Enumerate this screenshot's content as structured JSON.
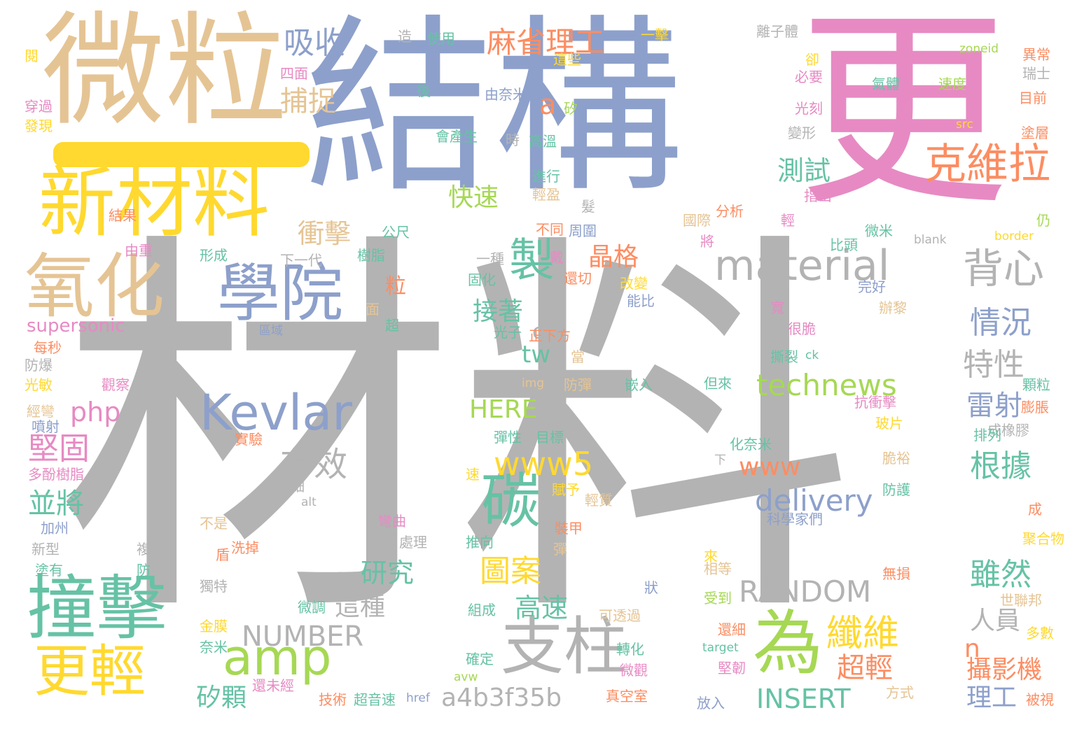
{
  "palette": {
    "grey": "#B3B3B3",
    "blue": "#8DA0CB",
    "pink": "#E78AC3",
    "tan": "#E5C494",
    "yellow": "#FFD92F",
    "green": "#A6D854",
    "teal": "#66C2A5",
    "orange": "#FC8D62"
  },
  "words": [
    {
      "text": "材料",
      "color": "grey"
    },
    {
      "text": "結構",
      "color": "blue"
    },
    {
      "text": "更",
      "color": "pink"
    },
    {
      "text": "微粒",
      "color": "tan"
    },
    {
      "text": "新材料",
      "color": "yellow"
    },
    {
      "text": "氧化",
      "color": "tan"
    },
    {
      "text": "學院",
      "color": "blue"
    },
    {
      "text": "撞擊",
      "color": "teal"
    },
    {
      "text": "更輕",
      "color": "yellow"
    },
    {
      "text": "Kevlar",
      "color": "blue"
    },
    {
      "text": "amp",
      "color": "green"
    },
    {
      "text": "支柱",
      "color": "grey"
    },
    {
      "text": "為",
      "color": "green"
    },
    {
      "text": "material",
      "color": "grey"
    },
    {
      "text": "克維拉",
      "color": "orange"
    },
    {
      "text": "背心",
      "color": "grey"
    },
    {
      "text": "碳",
      "color": "teal"
    },
    {
      "text": "製",
      "color": "teal"
    },
    {
      "text": "technews",
      "color": "green"
    },
    {
      "text": "www5",
      "color": "yellow"
    },
    {
      "text": "RANDOM",
      "color": "grey"
    },
    {
      "text": "NUMBER",
      "color": "grey"
    },
    {
      "text": "a4b3f35b",
      "color": "grey"
    },
    {
      "text": "INSERT",
      "color": "teal"
    },
    {
      "text": "delivery",
      "color": "blue"
    },
    {
      "text": "www",
      "color": "orange"
    },
    {
      "text": "HERE",
      "color": "green"
    },
    {
      "text": "php",
      "color": "pink"
    },
    {
      "text": "tw",
      "color": "teal"
    },
    {
      "text": "cb",
      "color": "grey"
    },
    {
      "text": "a",
      "color": "orange"
    },
    {
      "text": "n",
      "color": "orange"
    },
    {
      "text": "有效",
      "color": "grey"
    },
    {
      "text": "纖維",
      "color": "yellow"
    },
    {
      "text": "測試",
      "color": "teal"
    },
    {
      "text": "麻省理工",
      "color": "orange"
    },
    {
      "text": "吸收",
      "color": "blue"
    },
    {
      "text": "捕捉",
      "color": "tan"
    },
    {
      "text": "快速",
      "color": "green"
    },
    {
      "text": "衝擊",
      "color": "tan"
    },
    {
      "text": "晶格",
      "color": "orange"
    },
    {
      "text": "情況",
      "color": "blue"
    },
    {
      "text": "特性",
      "color": "grey"
    },
    {
      "text": "接著",
      "color": "teal"
    },
    {
      "text": "雷射",
      "color": "blue"
    },
    {
      "text": "堅固",
      "color": "pink"
    },
    {
      "text": "根據",
      "color": "teal"
    },
    {
      "text": "並將",
      "color": "teal"
    },
    {
      "text": "雖然",
      "color": "teal"
    },
    {
      "text": "圖案",
      "color": "yellow"
    },
    {
      "text": "研究",
      "color": "teal"
    },
    {
      "text": "這種",
      "color": "grey"
    },
    {
      "text": "高速",
      "color": "teal"
    },
    {
      "text": "超輕",
      "color": "orange"
    },
    {
      "text": "人員",
      "color": "grey"
    },
    {
      "text": "攝影機",
      "color": "orange"
    },
    {
      "text": "矽顆",
      "color": "teal"
    },
    {
      "text": "理工",
      "color": "blue"
    },
    {
      "text": "粒",
      "color": "orange"
    },
    {
      "text": "supersonic",
      "color": "pink"
    },
    {
      "text": "造",
      "color": "grey"
    },
    {
      "text": "使用",
      "color": "teal"
    },
    {
      "text": "一擊",
      "color": "yellow"
    },
    {
      "text": "離子體",
      "color": "grey"
    },
    {
      "text": "異常",
      "color": "orange"
    },
    {
      "text": "瑞士",
      "color": "grey"
    },
    {
      "text": "目前",
      "color": "orange"
    },
    {
      "text": "塗層",
      "color": "orange"
    },
    {
      "text": "zoneid",
      "color": "green"
    },
    {
      "text": "卻",
      "color": "yellow"
    },
    {
      "text": "這些",
      "color": "yellow"
    },
    {
      "text": "必要",
      "color": "pink"
    },
    {
      "text": "四面",
      "color": "pink"
    },
    {
      "text": "後",
      "color": "teal"
    },
    {
      "text": "由奈米",
      "color": "blue"
    },
    {
      "text": "矽",
      "color": "green"
    },
    {
      "text": "氣體",
      "color": "teal"
    },
    {
      "text": "速度",
      "color": "green"
    },
    {
      "text": "光刻",
      "color": "pink"
    },
    {
      "text": "src",
      "color": "yellow"
    },
    {
      "text": "變形",
      "color": "grey"
    },
    {
      "text": "會產生",
      "color": "teal"
    },
    {
      "text": "時",
      "color": "grey"
    },
    {
      "text": "高溫",
      "color": "teal"
    },
    {
      "text": "進行",
      "color": "teal"
    },
    {
      "text": "輕盈",
      "color": "tan"
    },
    {
      "text": "指出",
      "color": "pink"
    },
    {
      "text": "分析",
      "color": "orange"
    },
    {
      "text": "國際",
      "color": "tan"
    },
    {
      "text": "輕",
      "color": "pink"
    },
    {
      "text": "髮",
      "color": "grey"
    },
    {
      "text": "不同",
      "color": "orange"
    },
    {
      "text": "周圍",
      "color": "blue"
    },
    {
      "text": "公尺",
      "color": "teal"
    },
    {
      "text": "微米",
      "color": "teal"
    },
    {
      "text": "仍",
      "color": "green"
    },
    {
      "text": "blank",
      "color": "grey"
    },
    {
      "text": "border",
      "color": "yellow"
    },
    {
      "text": "比頭",
      "color": "teal"
    },
    {
      "text": "將",
      "color": "pink"
    },
    {
      "text": "一種",
      "color": "grey"
    },
    {
      "text": "固化",
      "color": "teal"
    },
    {
      "text": "樹脂",
      "color": "teal"
    },
    {
      "text": "下一代",
      "color": "grey"
    },
    {
      "text": "形成",
      "color": "teal"
    },
    {
      "text": "戴",
      "color": "pink"
    },
    {
      "text": "還切",
      "color": "orange"
    },
    {
      "text": "改變",
      "color": "yellow"
    },
    {
      "text": "能比",
      "color": "blue"
    },
    {
      "text": "完好",
      "color": "blue"
    },
    {
      "text": "寬",
      "color": "pink"
    },
    {
      "text": "很脆",
      "color": "pink"
    },
    {
      "text": "撕裂",
      "color": "teal"
    },
    {
      "text": "ck",
      "color": "teal"
    },
    {
      "text": "辦黎",
      "color": "tan"
    },
    {
      "text": "顆粒",
      "color": "teal"
    },
    {
      "text": "膨脹",
      "color": "orange"
    },
    {
      "text": "成橡膠",
      "color": "grey"
    },
    {
      "text": "排列",
      "color": "teal"
    },
    {
      "text": "玻片",
      "color": "yellow"
    },
    {
      "text": "抗衝擊",
      "color": "pink"
    },
    {
      "text": "但來",
      "color": "teal"
    },
    {
      "text": "嵌入",
      "color": "teal"
    },
    {
      "text": "防彈",
      "color": "tan"
    },
    {
      "text": "當",
      "color": "tan"
    },
    {
      "text": "img",
      "color": "tan"
    },
    {
      "text": "正下方",
      "color": "orange"
    },
    {
      "text": "光子",
      "color": "teal"
    },
    {
      "text": "超",
      "color": "teal"
    },
    {
      "text": "面",
      "color": "tan"
    },
    {
      "text": "區域",
      "color": "blue"
    },
    {
      "text": "觀察",
      "color": "pink"
    },
    {
      "text": "彈性",
      "color": "teal"
    },
    {
      "text": "目標",
      "color": "teal"
    },
    {
      "text": "化奈米",
      "color": "teal"
    },
    {
      "text": "下",
      "color": "grey"
    },
    {
      "text": "脆裕",
      "color": "tan"
    },
    {
      "text": "防護",
      "color": "teal"
    },
    {
      "text": "成",
      "color": "orange"
    },
    {
      "text": "聚合物",
      "color": "yellow"
    },
    {
      "text": "科學家們",
      "color": "blue"
    },
    {
      "text": "速",
      "color": "yellow"
    },
    {
      "text": "賦予",
      "color": "yellow"
    },
    {
      "text": "輕質",
      "color": "tan"
    },
    {
      "text": "裝甲",
      "color": "orange"
    },
    {
      "text": "彈",
      "color": "tan"
    },
    {
      "text": "推向",
      "color": "teal"
    },
    {
      "text": "彎曲",
      "color": "pink"
    },
    {
      "text": "處理",
      "color": "grey"
    },
    {
      "text": "洗掉",
      "color": "orange"
    },
    {
      "text": "盾",
      "color": "orange"
    },
    {
      "text": "來",
      "color": "yellow"
    },
    {
      "text": "相等",
      "color": "tan"
    },
    {
      "text": "無損",
      "color": "orange"
    },
    {
      "text": "世聯邦",
      "color": "tan"
    },
    {
      "text": "多數",
      "color": "yellow"
    },
    {
      "text": "被視",
      "color": "orange"
    },
    {
      "text": "方式",
      "color": "tan"
    },
    {
      "text": "狀",
      "color": "blue"
    },
    {
      "text": "受到",
      "color": "green"
    },
    {
      "text": "組成",
      "color": "teal"
    },
    {
      "text": "可透過",
      "color": "tan"
    },
    {
      "text": "還細",
      "color": "orange"
    },
    {
      "text": "target",
      "color": "teal"
    },
    {
      "text": "堅韌",
      "color": "pink"
    },
    {
      "text": "轉化",
      "color": "teal"
    },
    {
      "text": "微觀",
      "color": "pink"
    },
    {
      "text": "真空室",
      "color": "orange"
    },
    {
      "text": "確定",
      "color": "teal"
    },
    {
      "text": "avw",
      "color": "green"
    },
    {
      "text": "放入",
      "color": "blue"
    },
    {
      "text": "超音速",
      "color": "teal"
    },
    {
      "text": "href",
      "color": "blue"
    },
    {
      "text": "技術",
      "color": "orange"
    },
    {
      "text": "還未經",
      "color": "pink"
    },
    {
      "text": "微調",
      "color": "teal"
    },
    {
      "text": "金膜",
      "color": "yellow"
    },
    {
      "text": "奈米",
      "color": "teal"
    },
    {
      "text": "獨特",
      "color": "grey"
    },
    {
      "text": "複",
      "color": "grey"
    },
    {
      "text": "防",
      "color": "teal"
    },
    {
      "text": "不是",
      "color": "tan"
    },
    {
      "text": "alt",
      "color": "grey"
    },
    {
      "text": "仔細",
      "color": "grey"
    },
    {
      "text": "閱",
      "color": "yellow"
    },
    {
      "text": "穿過",
      "color": "pink"
    },
    {
      "text": "發現",
      "color": "yellow"
    },
    {
      "text": "結果",
      "color": "orange"
    },
    {
      "text": "由重",
      "color": "pink"
    },
    {
      "text": "每秒",
      "color": "orange"
    },
    {
      "text": "防爆",
      "color": "grey"
    },
    {
      "text": "光敏",
      "color": "yellow"
    },
    {
      "text": "經彎",
      "color": "tan"
    },
    {
      "text": "噴射",
      "color": "blue"
    },
    {
      "text": "實驗",
      "color": "orange"
    },
    {
      "text": "多酚樹脂",
      "color": "pink"
    },
    {
      "text": "加州",
      "color": "blue"
    },
    {
      "text": "新型",
      "color": "grey"
    },
    {
      "text": "塗有",
      "color": "teal"
    }
  ]
}
